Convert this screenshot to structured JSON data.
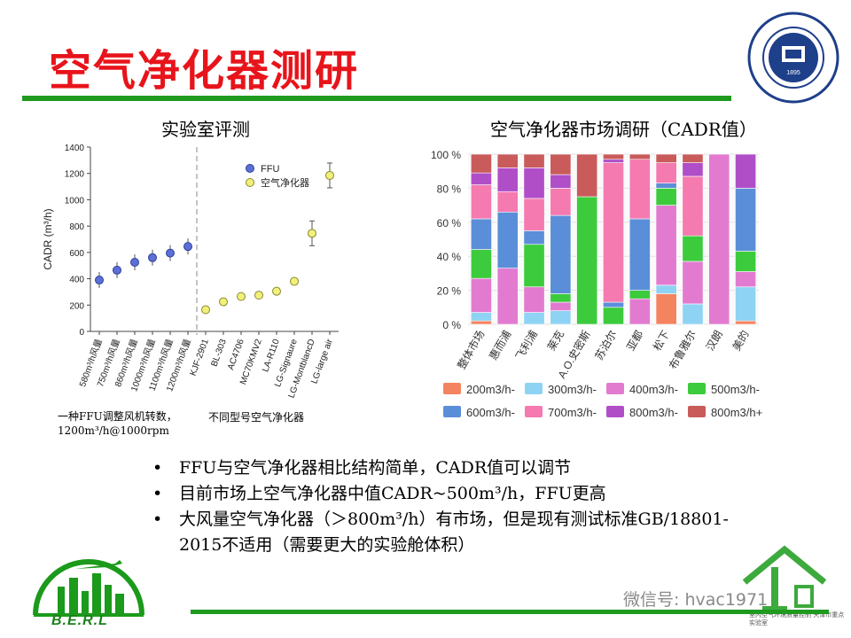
{
  "title": "空气净化器测研",
  "left_subtitle": "实验室评测",
  "right_subtitle": "空气净化器市场调研（CADR值）",
  "left_note": "一种FFU调整风机转数，1200m³/h@1000rpm",
  "left_note2": "不同型号空气净化器",
  "bullets": [
    "FFU与空气净化器相比结构简单，CADR值可以调节",
    "目前市场上空气净化器中值CADR~500m³/h，FFU更高",
    "大风量空气净化器（＞800m³/h）有市场，但是现有测试标准GB/18801-2015不适用（需要更大的实验舱体积）"
  ],
  "watermark": "微信号: hvac1971",
  "berl_label": "B.E.R.L",
  "lab_label": "室内空气环境质量控制 天津市重点实验室",
  "colors": {
    "title": "#e8141b",
    "rule": "#1f9a1f",
    "ffu": "#5b6fd6",
    "purifier": "#f0f07a"
  },
  "chart_data": [
    {
      "type": "scatter",
      "ylabel": "CADR (m³/h)",
      "ylim": [
        0,
        1400
      ],
      "yticks": [
        0,
        200,
        400,
        600,
        800,
        1000,
        1200,
        1400
      ],
      "categories": [
        "580m³/h风量",
        "750m³/h风量",
        "860m³/h风量",
        "1000m³/h风量",
        "1100m³/h风量",
        "1200m³/h风量",
        "KJF-2901",
        "BL-303",
        "AC4706",
        "MC70KMV2",
        "LA-R110",
        "LG-Signaure",
        "LG-MontblancD",
        "LG-large air"
      ],
      "legend": [
        "FFU",
        "空气净化器"
      ],
      "series": [
        {
          "name": "FFU",
          "values": [
            390,
            465,
            525,
            560,
            595,
            645,
            null,
            null,
            null,
            null,
            null,
            null,
            null,
            null
          ]
        },
        {
          "name": "空气净化器",
          "values": [
            null,
            null,
            null,
            null,
            null,
            null,
            165,
            225,
            265,
            275,
            305,
            380,
            745,
            1185
          ]
        }
      ]
    },
    {
      "type": "bar",
      "stacked": true,
      "ylim": [
        0,
        100
      ],
      "yticks": [
        "0 %",
        "20 %",
        "40 %",
        "60 %",
        "80 %",
        "100 %"
      ],
      "categories": [
        "整体市场",
        "惠而浦",
        "飞利浦",
        "莱克",
        "A.O.史密斯",
        "苏泊尔",
        "亚都",
        "松下",
        "布鲁雅尔",
        "汉朗",
        "美的"
      ],
      "series": [
        {
          "name": "200m3/h-",
          "color": "#f4845f",
          "values": [
            2,
            0,
            0,
            0,
            0,
            0,
            0,
            18,
            0,
            0,
            2
          ]
        },
        {
          "name": "300m3/h-",
          "color": "#8fd3f4",
          "values": [
            5,
            0,
            7,
            8,
            0,
            0,
            0,
            5,
            12,
            0,
            20
          ]
        },
        {
          "name": "400m3/h-",
          "color": "#e27bd0",
          "values": [
            20,
            33,
            15,
            5,
            0,
            0,
            15,
            47,
            25,
            100,
            9
          ]
        },
        {
          "name": "500m3/h-",
          "color": "#3ccb3c",
          "values": [
            17,
            0,
            25,
            5,
            75,
            10,
            5,
            10,
            15,
            0,
            12
          ]
        },
        {
          "name": "600m3/h-",
          "color": "#5b8ed8",
          "values": [
            18,
            33,
            8,
            46,
            0,
            3,
            42,
            3,
            0,
            0,
            37
          ]
        },
        {
          "name": "700m3/h-",
          "color": "#f47ab0",
          "values": [
            20,
            12,
            19,
            16,
            0,
            82,
            35,
            12,
            35,
            0,
            0
          ]
        },
        {
          "name": "800m3/h-",
          "color": "#b04ec8",
          "values": [
            7,
            14,
            18,
            8,
            0,
            2,
            0,
            0,
            8,
            0,
            20
          ]
        },
        {
          "name": "800m3/h+",
          "color": "#c95b5b",
          "values": [
            11,
            8,
            8,
            12,
            25,
            3,
            3,
            5,
            5,
            0,
            0
          ]
        }
      ]
    }
  ]
}
